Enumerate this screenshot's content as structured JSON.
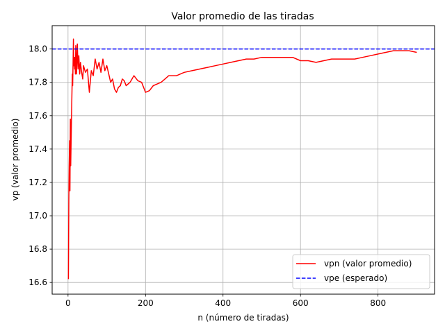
{
  "chart_data": {
    "type": "line",
    "title": "Valor promedio de las tiradas",
    "xlabel": "n (número de tiradas)",
    "ylabel": "vp (valor promedio)",
    "xlim": [
      -41,
      946
    ],
    "ylim": [
      16.53,
      18.14
    ],
    "xticks": [
      0,
      200,
      400,
      600,
      800
    ],
    "xtick_labels": [
      "0",
      "200",
      "400",
      "600",
      "800"
    ],
    "yticks": [
      16.6,
      16.8,
      17.0,
      17.2,
      17.4,
      17.6,
      17.8,
      18.0
    ],
    "ytick_labels": [
      "16.6",
      "16.8",
      "17.0",
      "17.2",
      "17.4",
      "17.6",
      "17.8",
      "18.0"
    ],
    "grid": true,
    "legend_position": "lower-right",
    "series": [
      {
        "name": "vpn (valor promedio)",
        "color": "#ff0000",
        "style": "solid",
        "x": [
          1,
          2,
          3,
          4,
          5,
          6,
          7,
          8,
          9,
          10,
          11,
          12,
          13,
          14,
          15,
          16,
          17,
          18,
          19,
          20,
          22,
          24,
          26,
          28,
          30,
          32,
          35,
          38,
          40,
          45,
          50,
          55,
          60,
          65,
          70,
          75,
          80,
          85,
          90,
          95,
          100,
          105,
          110,
          115,
          120,
          125,
          130,
          135,
          140,
          145,
          150,
          160,
          170,
          180,
          190,
          200,
          210,
          220,
          230,
          240,
          250,
          260,
          270,
          280,
          290,
          300,
          320,
          340,
          360,
          380,
          400,
          420,
          440,
          460,
          480,
          500,
          520,
          540,
          560,
          580,
          600,
          620,
          640,
          660,
          680,
          700,
          720,
          740,
          760,
          780,
          800,
          820,
          840,
          860,
          880,
          900
        ],
        "y": [
          16.62,
          17.1,
          17.3,
          17.45,
          17.15,
          17.58,
          17.3,
          17.45,
          17.6,
          17.72,
          17.85,
          17.78,
          17.92,
          18.06,
          17.9,
          17.95,
          17.88,
          17.95,
          17.85,
          18.02,
          17.85,
          18.03,
          17.88,
          17.96,
          17.85,
          17.92,
          17.86,
          17.82,
          17.9,
          17.86,
          17.88,
          17.74,
          17.87,
          17.84,
          17.94,
          17.88,
          17.92,
          17.86,
          17.94,
          17.87,
          17.9,
          17.85,
          17.8,
          17.82,
          17.76,
          17.74,
          17.77,
          17.78,
          17.82,
          17.81,
          17.78,
          17.8,
          17.84,
          17.81,
          17.8,
          17.74,
          17.75,
          17.78,
          17.79,
          17.8,
          17.82,
          17.84,
          17.84,
          17.84,
          17.85,
          17.86,
          17.87,
          17.88,
          17.89,
          17.9,
          17.91,
          17.92,
          17.93,
          17.94,
          17.94,
          17.95,
          17.95,
          17.95,
          17.95,
          17.95,
          17.93,
          17.93,
          17.92,
          17.93,
          17.94,
          17.94,
          17.94,
          17.94,
          17.95,
          17.96,
          17.97,
          17.98,
          17.99,
          17.99,
          17.99,
          17.98
        ]
      },
      {
        "name": "vpe (esperado)",
        "color": "#0000ff",
        "style": "dashed",
        "constant_y": 18.0
      }
    ]
  }
}
